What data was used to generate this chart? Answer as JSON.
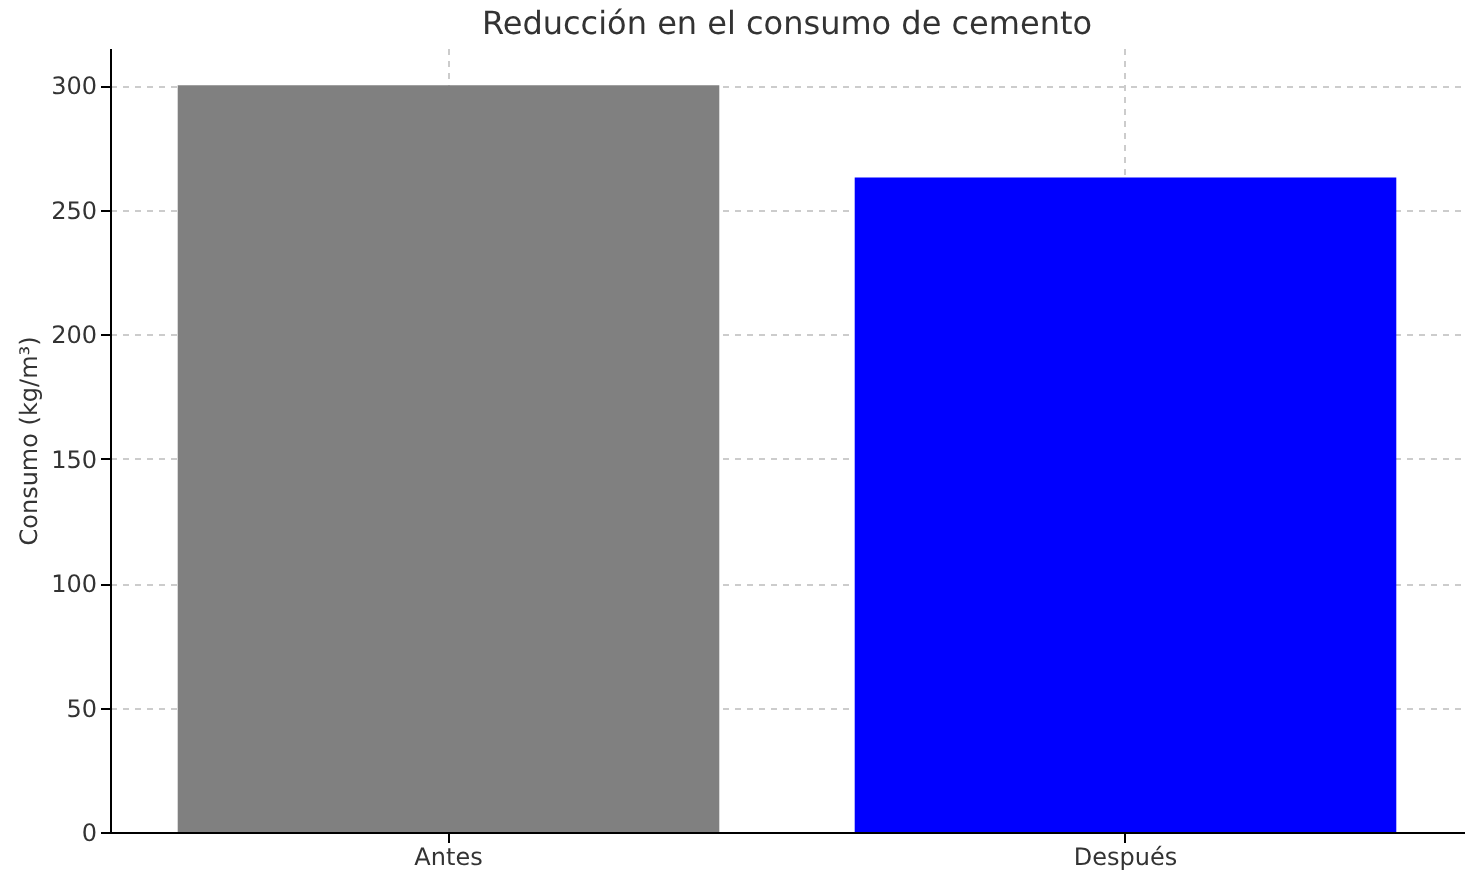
{
  "chart_data": {
    "type": "bar",
    "title": "Reducción en el consumo de cemento",
    "ylabel": "Consumo (kg/m³)",
    "categories": [
      "Antes",
      "Después"
    ],
    "colors": [
      "#808080",
      "#0000ff"
    ],
    "values": [
      300,
      263
    ],
    "ylim": [
      0,
      315
    ],
    "yticks": [
      0,
      50,
      100,
      150,
      200,
      250,
      300
    ],
    "grid": true
  }
}
